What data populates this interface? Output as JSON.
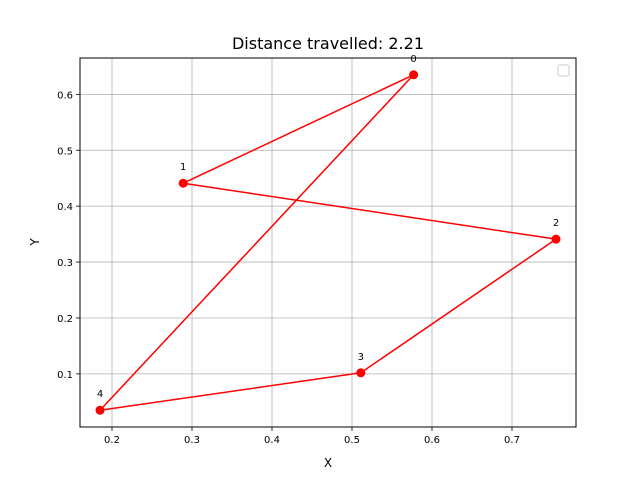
{
  "chart_data": {
    "type": "line",
    "title": "Distance travelled: 2.21",
    "xlabel": "X",
    "ylabel": "Y",
    "xlim": [
      0.16,
      0.78
    ],
    "ylim": [
      0.005,
      0.665
    ],
    "xticks": [
      0.2,
      0.3,
      0.4,
      0.5,
      0.6,
      0.7
    ],
    "xtick_labels": [
      "0.2",
      "0.3",
      "0.4",
      "0.5",
      "0.6",
      "0.7"
    ],
    "yticks": [
      0.1,
      0.2,
      0.3,
      0.4,
      0.5,
      0.6
    ],
    "ytick_labels": [
      "0.1",
      "0.2",
      "0.3",
      "0.4",
      "0.5",
      "0.6"
    ],
    "grid": true,
    "legend": {
      "placement": "upper-right",
      "entries": []
    },
    "line_color": "#ff0000",
    "points": [
      {
        "label": "0",
        "x": 0.577,
        "y": 0.635
      },
      {
        "label": "1",
        "x": 0.289,
        "y": 0.441
      },
      {
        "label": "2",
        "x": 0.755,
        "y": 0.341
      },
      {
        "label": "3",
        "x": 0.511,
        "y": 0.102
      },
      {
        "label": "4",
        "x": 0.185,
        "y": 0.035
      }
    ],
    "path_order": [
      0,
      1,
      2,
      3,
      4,
      0
    ]
  }
}
